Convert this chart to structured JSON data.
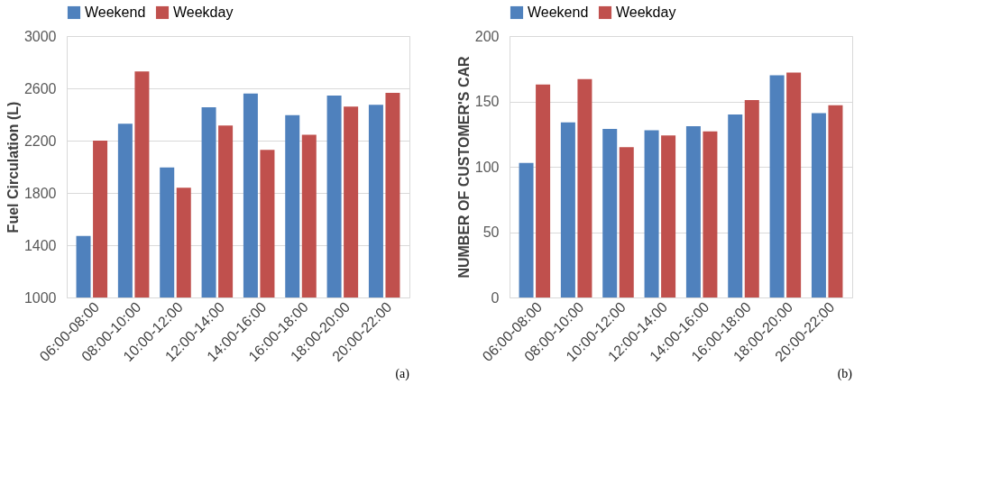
{
  "chart_data": [
    {
      "type": "bar",
      "ylabel": "Fuel Circulation (L)",
      "categories": [
        "06:00-08:00",
        "08:00-10:00",
        "10:00-12:00",
        "12:00-14:00",
        "14:00-16:00",
        "16:00-18:00",
        "18:00-20:00",
        "20:00-22:00"
      ],
      "series": [
        {
          "name": "Weekend",
          "color": "#4f81bd",
          "values": [
            1470,
            2330,
            1995,
            2455,
            2560,
            2395,
            2545,
            2475
          ]
        },
        {
          "name": "Weekday",
          "color": "#c0504d",
          "values": [
            2200,
            2730,
            1840,
            2315,
            2130,
            2245,
            2460,
            2565
          ]
        }
      ],
      "ylim": [
        1000,
        3000
      ],
      "yticks": [
        1000,
        1400,
        1800,
        2200,
        2600,
        3000
      ],
      "grid": "y",
      "legend": "top",
      "annotations": [
        "(a)"
      ]
    },
    {
      "type": "bar",
      "ylabel": "NUMBER OF CUSTOMER'S CAR",
      "categories": [
        "06:00-08:00",
        "08:00-10:00",
        "10:00-12:00",
        "12:00-14:00",
        "14:00-16:00",
        "16:00-18:00",
        "18:00-20:00",
        "20:00-22:00"
      ],
      "series": [
        {
          "name": "Weekend",
          "color": "#4f81bd",
          "values": [
            103,
            134,
            129,
            128,
            131,
            140,
            170,
            141
          ]
        },
        {
          "name": "Weekday",
          "color": "#c0504d",
          "values": [
            163,
            167,
            115,
            124,
            127,
            151,
            172,
            147
          ]
        }
      ],
      "ylim": [
        0,
        200
      ],
      "yticks": [
        0,
        50,
        100,
        150,
        200
      ],
      "grid": "y",
      "legend": "top",
      "annotations": [
        "(b)"
      ]
    }
  ]
}
